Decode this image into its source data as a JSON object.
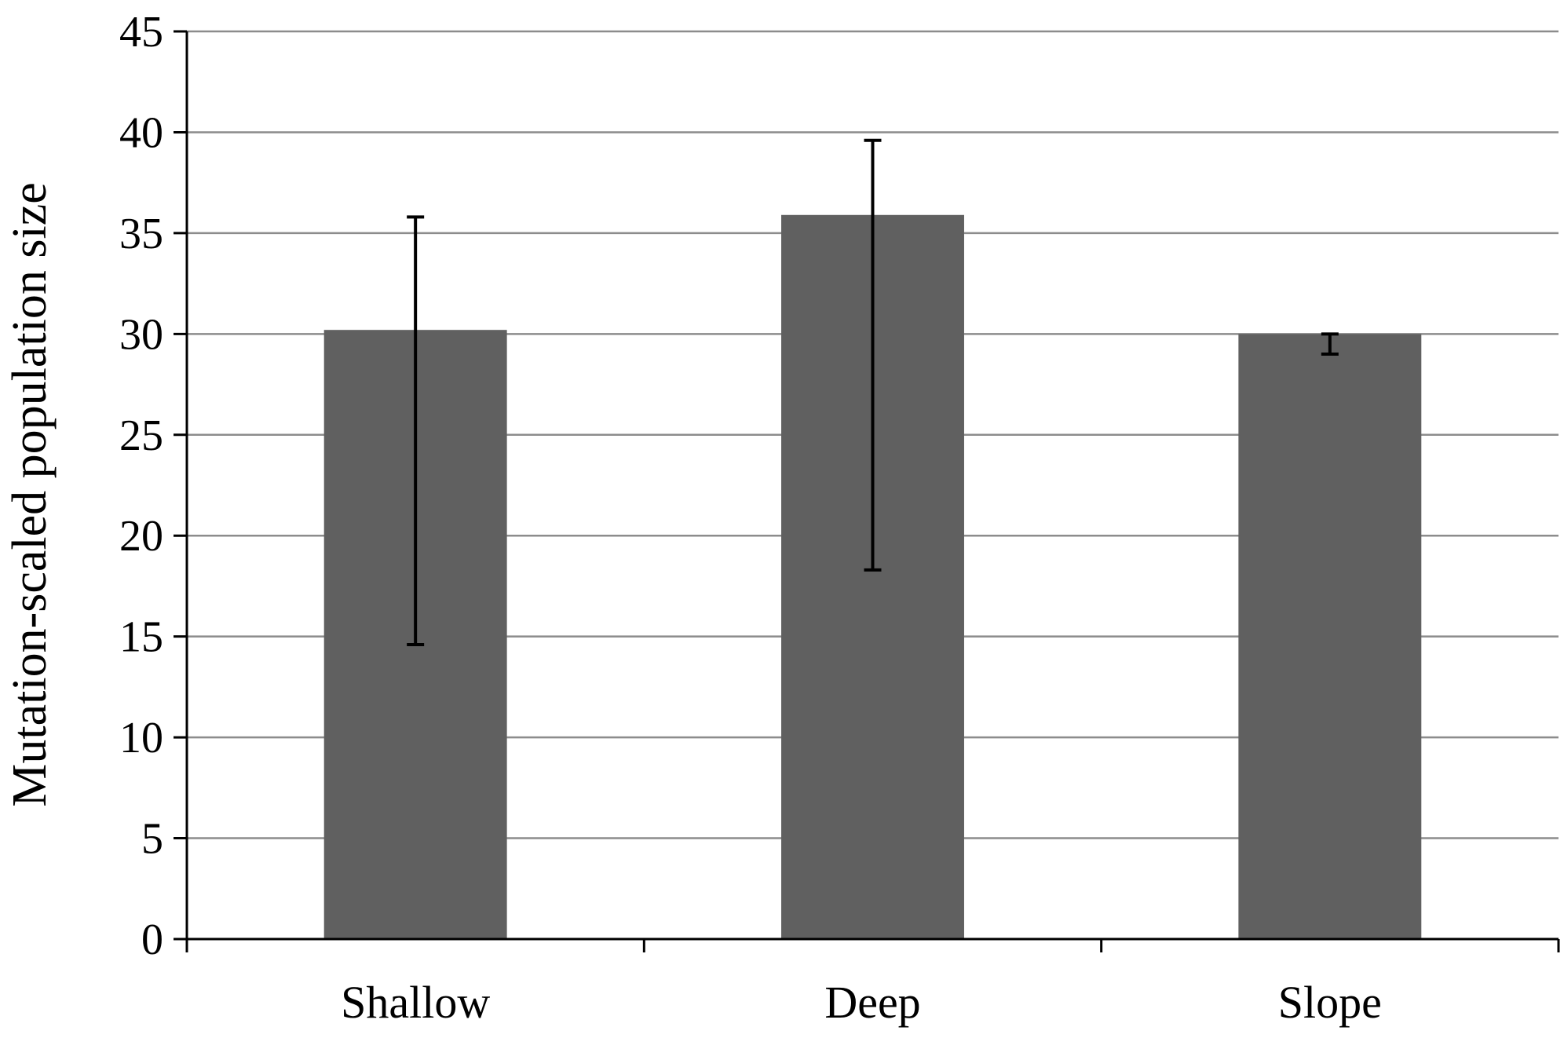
{
  "chart_data": {
    "type": "bar",
    "title": "",
    "xlabel": "",
    "ylabel": "Mutation-scaled population size",
    "categories": [
      "Shallow",
      "Deep",
      "Slope"
    ],
    "series": [
      {
        "values": [
          30.2,
          35.9,
          30.0
        ],
        "error_upper": [
          35.8,
          39.6,
          30.0
        ],
        "error_lower": [
          14.6,
          18.3,
          29.0
        ],
        "color": "#606060"
      }
    ],
    "ylim": [
      0,
      45
    ],
    "yticks": [
      "0",
      "5",
      "10",
      "15",
      "20",
      "25",
      "30",
      "35",
      "40",
      "45"
    ],
    "grid": true,
    "legend": "none",
    "colors": {
      "bar": "#606060",
      "grid": "#8c8c8c",
      "axis": "#000000",
      "error_bar": "#000000"
    }
  }
}
